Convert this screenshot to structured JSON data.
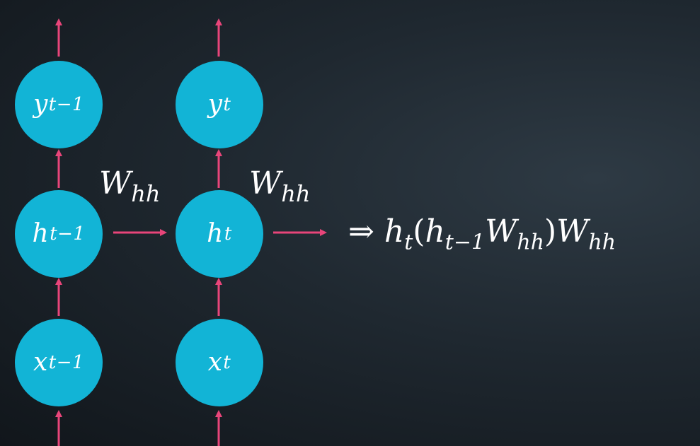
{
  "nodes": {
    "y_prev": {
      "sym": "y",
      "sub": "t−1"
    },
    "y_curr": {
      "sym": "y",
      "sub": "t"
    },
    "h_prev": {
      "sym": "h",
      "sub": "t−1"
    },
    "h_curr": {
      "sym": "h",
      "sub": "t"
    },
    "x_prev": {
      "sym": "x",
      "sub": "t−1"
    },
    "x_curr": {
      "sym": "x",
      "sub": "t"
    }
  },
  "weights": {
    "w1": {
      "sym": "W",
      "sub": "hh"
    },
    "w2": {
      "sym": "W",
      "sub": "hh"
    }
  },
  "equation": {
    "implies": "⇒",
    "h": "h",
    "h_sub": "t",
    "open": "(",
    "h2": "h",
    "h2_sub": "t−1",
    "w1": "W",
    "w1_sub": "hh",
    "close": ")",
    "w2": "W",
    "w2_sub": "hh"
  },
  "colors": {
    "node": "#12b4d6",
    "arrow": "#e8457a",
    "text": "#ffffff"
  }
}
